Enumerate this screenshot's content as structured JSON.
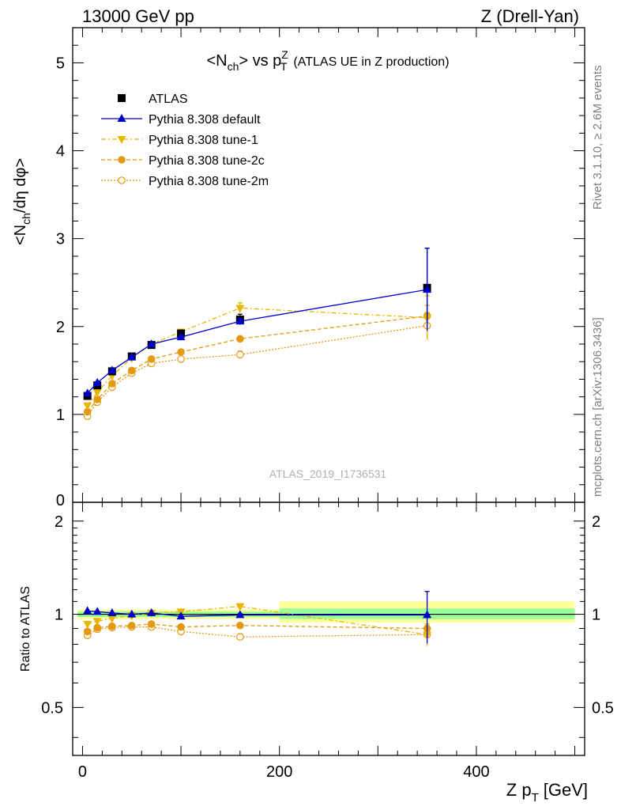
{
  "header": {
    "beam": "13000 GeV pp",
    "process": "Z (Drell-Yan)",
    "side_rivet": "Rivet 3.1.10, ≥ 2.6M events",
    "side_site": "mcplots.cern.ch [arXiv:1306.3436]",
    "analysis_id": "ATLAS_2019_I1736531"
  },
  "colors": {
    "data": "#000000",
    "default": "#0000cc",
    "tune1": "#e8b600",
    "tune2c": "#e39a10",
    "tune2m": "#e39a10",
    "band_outer": "#ffff99",
    "band_inner": "#99ff99"
  },
  "chart_data": [
    {
      "type": "line",
      "title": "<N_ch> vs p_T^Z (ATLAS UE in Z production)",
      "title_parts": {
        "main": "<N",
        "sub1": "ch",
        "mid": "> vs p",
        "sup": "Z",
        "sub2": "T",
        "tail": "(ATLAS UE in Z production)"
      },
      "ylabel": "<N_ch/dη dφ>",
      "ylabel_parts": {
        "a": "<N",
        "sub": "ch",
        "b": "/dη dφ>"
      },
      "xlim": [
        -10,
        510
      ],
      "ylim": [
        0,
        5.4
      ],
      "yticks": [
        0,
        1,
        2,
        3,
        4,
        5
      ],
      "ytick_labels": [
        "0",
        "1",
        "2",
        "3",
        "4",
        "5"
      ],
      "legend_placement": "top-left",
      "x": [
        5,
        15,
        30,
        50,
        70,
        100,
        160,
        350
      ],
      "series": [
        {
          "key": "atlas",
          "name": "ATLAS",
          "values": [
            1.21,
            1.33,
            1.49,
            1.66,
            1.79,
            1.92,
            2.08,
            2.44
          ],
          "err": [
            0.03,
            0.03,
            0.03,
            0.03,
            0.03,
            0.04,
            0.06,
            0.45
          ]
        },
        {
          "key": "default",
          "name": "Pythia 8.308 default",
          "values": [
            1.24,
            1.36,
            1.5,
            1.65,
            1.8,
            1.88,
            2.06,
            2.42
          ],
          "err": [
            0.01,
            0.01,
            0.01,
            0.01,
            0.01,
            0.02,
            0.03,
            0.47
          ]
        },
        {
          "key": "tune1",
          "name": "Pythia 8.308 tune-1",
          "values": [
            1.1,
            1.25,
            1.44,
            1.64,
            1.8,
            1.94,
            2.21,
            2.1
          ],
          "err": [
            0.01,
            0.01,
            0.01,
            0.01,
            0.01,
            0.02,
            0.06,
            0.25
          ]
        },
        {
          "key": "tune2c",
          "name": "Pythia 8.308 tune-2c",
          "values": [
            1.03,
            1.17,
            1.35,
            1.5,
            1.63,
            1.71,
            1.86,
            2.12
          ],
          "err": [
            0.01,
            0.01,
            0.01,
            0.01,
            0.01,
            0.02,
            0.03,
            0.12
          ]
        },
        {
          "key": "tune2m",
          "name": "Pythia 8.308 tune-2m",
          "values": [
            0.98,
            1.14,
            1.31,
            1.47,
            1.58,
            1.63,
            1.68,
            2.01
          ],
          "err": [
            0.01,
            0.01,
            0.01,
            0.01,
            0.01,
            0.02,
            0.04,
            0.15
          ]
        }
      ]
    },
    {
      "type": "line",
      "ylabel": "Ratio to ATLAS",
      "xlabel": "Z p_T [GeV]",
      "xlabel_parts": {
        "a": "Z p",
        "sub": "T",
        "b": "[GeV]"
      },
      "xlim": [
        -10,
        510
      ],
      "ylim": [
        0.35,
        2.3
      ],
      "xticks": [
        0,
        200,
        400
      ],
      "xtick_labels": [
        "0",
        "200",
        "400"
      ],
      "yticks": [
        0.5,
        1,
        2
      ],
      "ytick_labels": [
        "0.5",
        "1",
        "2"
      ],
      "bands": [
        {
          "x0": -5,
          "x1": 200,
          "outer": [
            0.965,
            1.035
          ],
          "inner": [
            0.98,
            1.02
          ]
        },
        {
          "x0": 200,
          "x1": 500,
          "outer": [
            0.94,
            1.1
          ],
          "inner": [
            0.965,
            1.045
          ]
        }
      ],
      "x": [
        5,
        15,
        30,
        50,
        70,
        100,
        160,
        350
      ],
      "series": [
        {
          "key": "default",
          "name": "Pythia 8.308 default",
          "values": [
            1.025,
            1.02,
            1.01,
            1.0,
            1.01,
            0.985,
            0.995,
            0.995
          ],
          "err": [
            0.0,
            0.0,
            0.0,
            0.0,
            0.0,
            0.0,
            0.01,
            0.19
          ]
        },
        {
          "key": "tune1",
          "name": "Pythia 8.308 tune-1",
          "values": [
            0.93,
            0.95,
            0.97,
            0.99,
            1.01,
            1.02,
            1.06,
            0.86
          ],
          "err": [
            0.0,
            0.0,
            0.0,
            0.0,
            0.0,
            0.0,
            0.02,
            0.07
          ]
        },
        {
          "key": "tune2c",
          "name": "Pythia 8.308 tune-2c",
          "values": [
            0.88,
            0.905,
            0.915,
            0.92,
            0.93,
            0.91,
            0.92,
            0.9
          ],
          "err": [
            0.0,
            0.0,
            0.0,
            0.0,
            0.0,
            0.0,
            0.01,
            0.03
          ]
        },
        {
          "key": "tune2m",
          "name": "Pythia 8.308 tune-2m",
          "values": [
            0.855,
            0.895,
            0.905,
            0.91,
            0.91,
            0.88,
            0.845,
            0.86
          ],
          "err": [
            0.0,
            0.0,
            0.0,
            0.0,
            0.0,
            0.0,
            0.02,
            0.04
          ]
        }
      ]
    }
  ]
}
